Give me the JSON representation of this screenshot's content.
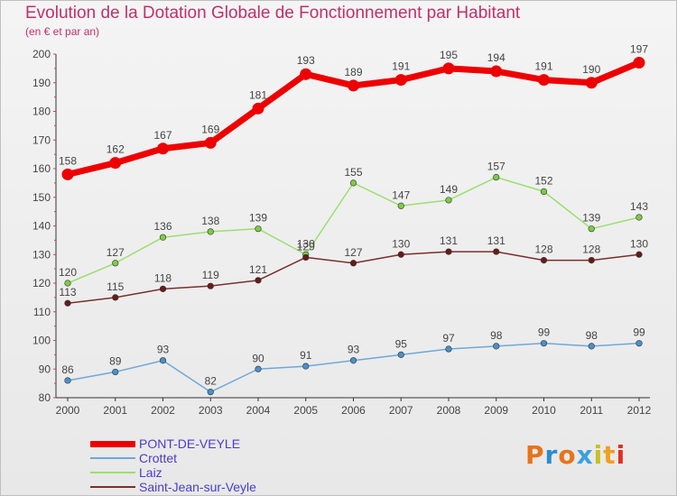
{
  "title": "Evolution de la Dotation Globale de Fonctionnement par Habitant",
  "subtitle": "(en € et par an)",
  "logo": {
    "text": "Proxiti",
    "colors": [
      "#e8731a",
      "#2b8ccf",
      "#e8731a",
      "#3aa0e0",
      "#c8c020",
      "#f0a020",
      "#e03020"
    ]
  },
  "colors": {
    "title": "#c0306a",
    "axis": "#333333",
    "tick": "#d43b5e",
    "label": "#444444"
  },
  "chart_data": {
    "type": "line",
    "title": "Evolution de la Dotation Globale de Fonctionnement par Habitant",
    "subtitle": "(en € et par an)",
    "x": [
      "2000",
      "2001",
      "2002",
      "2003",
      "2004",
      "2005",
      "2006",
      "2007",
      "2008",
      "2009",
      "2010",
      "2011",
      "2012"
    ],
    "ylim": [
      80,
      200
    ],
    "yticks": [
      80,
      90,
      100,
      110,
      120,
      130,
      140,
      150,
      160,
      170,
      180,
      190,
      200
    ],
    "grid": false,
    "legend": "bottom-left",
    "series": [
      {
        "name": "PONT-DE-VEYLE",
        "color": "#ee0000",
        "marker": "#ee0000",
        "width": "thick",
        "values": [
          158,
          162,
          167,
          169,
          181,
          193,
          189,
          191,
          195,
          194,
          191,
          190,
          197
        ]
      },
      {
        "name": "Crottet",
        "color": "#6fa8d8",
        "marker": "#4a8fcc",
        "width": "thin",
        "values": [
          86,
          89,
          93,
          82,
          90,
          91,
          93,
          95,
          97,
          98,
          99,
          98,
          99
        ]
      },
      {
        "name": "Laiz",
        "color": "#9adf6f",
        "marker": "#7ccc44",
        "width": "thin",
        "values": [
          120,
          127,
          136,
          138,
          139,
          130,
          155,
          147,
          149,
          157,
          152,
          139,
          143
        ]
      },
      {
        "name": "Saint-Jean-sur-Veyle",
        "color": "#7a2e2e",
        "marker": "#6a1a1a",
        "width": "thin",
        "values": [
          113,
          115,
          118,
          119,
          121,
          129,
          127,
          130,
          131,
          131,
          128,
          128,
          130
        ]
      }
    ]
  }
}
